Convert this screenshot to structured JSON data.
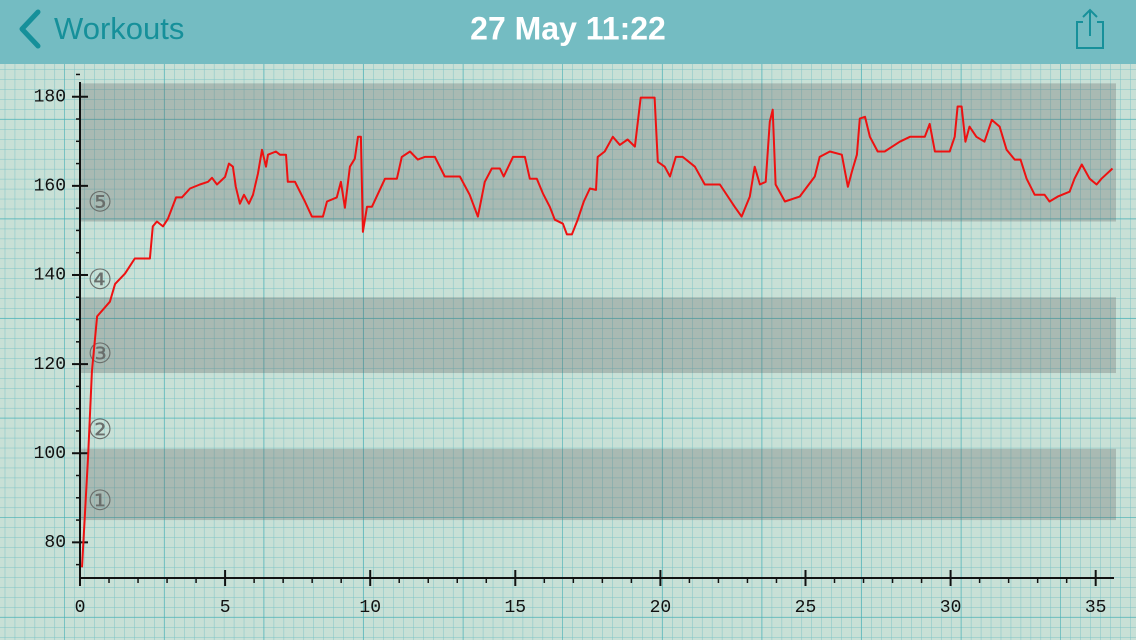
{
  "header": {
    "back": "Workouts",
    "title": "27 May 11:22"
  },
  "chart_data": {
    "type": "line",
    "x": [
      0.07,
      0.28,
      0.41,
      0.59,
      1.03,
      1.21,
      1.55,
      1.89,
      2.41,
      2.51,
      2.65,
      2.86,
      3.03,
      3.31,
      3.51,
      3.79,
      4.13,
      4.41,
      4.55,
      4.72,
      5.0,
      5.13,
      5.27,
      5.37,
      5.51,
      5.65,
      5.82,
      5.96,
      6.13,
      6.27,
      6.41,
      6.48,
      6.75,
      6.89,
      7.1,
      7.16,
      7.41,
      7.75,
      7.99,
      8.37,
      8.51,
      8.85,
      8.99,
      9.13,
      9.3,
      9.47,
      9.58,
      9.68,
      9.75,
      9.89,
      10.06,
      10.51,
      10.92,
      11.09,
      11.37,
      11.64,
      11.88,
      12.23,
      12.57,
      13.09,
      13.43,
      13.71,
      13.95,
      14.19,
      14.47,
      14.6,
      14.92,
      15.33,
      15.5,
      15.74,
      15.95,
      16.19,
      16.36,
      16.64,
      16.78,
      16.95,
      17.15,
      17.36,
      17.57,
      17.78,
      17.84,
      18.08,
      18.36,
      18.6,
      18.87,
      19.12,
      19.32,
      19.8,
      19.91,
      20.15,
      20.33,
      20.53,
      20.77,
      21.19,
      21.53,
      22.05,
      22.56,
      22.8,
      23.08,
      23.25,
      23.43,
      23.63,
      23.77,
      23.87,
      23.97,
      24.29,
      24.8,
      25.32,
      25.49,
      25.84,
      26.25,
      26.46,
      26.6,
      26.77,
      26.87,
      27.05,
      27.22,
      27.49,
      27.73,
      28.25,
      28.6,
      29.11,
      29.28,
      29.46,
      29.97,
      30.14,
      30.24,
      30.38,
      30.51,
      30.65,
      30.89,
      31.17,
      31.42,
      31.69,
      31.93,
      32.21,
      32.41,
      32.62,
      32.9,
      33.24,
      33.41,
      33.69,
      34.1,
      34.27,
      34.52,
      34.79,
      35.03,
      35.2,
      35.58
    ],
    "series": [
      {
        "color": "#ee1111",
        "values": [
          74.4,
          99.3,
          118.3,
          130.7,
          134,
          138,
          140.3,
          143.7,
          143.7,
          150.9,
          152,
          150.9,
          152.6,
          157.4,
          157.4,
          159.4,
          160.3,
          160.9,
          161.8,
          160.3,
          162,
          165,
          164.3,
          159.8,
          156,
          158,
          156,
          158,
          162.7,
          168.1,
          164.3,
          167,
          167.7,
          167,
          167,
          160.9,
          160.9,
          156.5,
          153.1,
          153.1,
          156.5,
          157.4,
          160.9,
          155.1,
          164.3,
          166.1,
          171,
          171,
          149.7,
          155.3,
          155.3,
          161.6,
          161.6,
          166.5,
          167.7,
          165.9,
          166.5,
          166.5,
          162.1,
          162.1,
          158,
          153.1,
          160.9,
          163.9,
          163.9,
          162.1,
          166.5,
          166.5,
          161.6,
          161.6,
          158.3,
          155.3,
          152.4,
          151.5,
          149.1,
          149.1,
          152.4,
          156.5,
          159.4,
          159.1,
          166.5,
          167.7,
          171,
          169.2,
          170.4,
          168.8,
          179.8,
          179.8,
          165.4,
          164.3,
          162.1,
          166.5,
          166.5,
          164.3,
          160.3,
          160.3,
          155.3,
          153.1,
          157.6,
          164.3,
          160.3,
          160.9,
          174.4,
          177.1,
          160.3,
          156.5,
          157.6,
          162.1,
          166.5,
          167.7,
          167,
          159.8,
          163.2,
          167,
          175.1,
          175.5,
          171,
          167.7,
          167.7,
          169.9,
          171,
          171,
          173.9,
          167.7,
          167.7,
          171,
          177.8,
          177.8,
          169.9,
          173.3,
          171,
          169.9,
          174.8,
          173.3,
          168.1,
          165.9,
          165.9,
          161.6,
          158,
          158,
          156.5,
          157.6,
          158.7,
          161.6,
          164.8,
          161.6,
          160.3,
          161.6,
          163.9
        ]
      }
    ],
    "xlim": [
      0,
      35.7
    ],
    "ylim": [
      72,
      186
    ],
    "xticks": [
      0,
      5,
      10,
      15,
      20,
      25,
      30,
      35
    ],
    "xminorticks": [
      1,
      2,
      3,
      4,
      6,
      7,
      8,
      9,
      11,
      12,
      13,
      14,
      16,
      17,
      18,
      19,
      21,
      22,
      23,
      24,
      26,
      27,
      28,
      29,
      31,
      32,
      33,
      34
    ],
    "yticks": [
      80,
      100,
      120,
      140,
      160,
      180
    ],
    "yminorticks": [
      75,
      85,
      90,
      95,
      105,
      110,
      115,
      125,
      130,
      135,
      145,
      150,
      155,
      165,
      170,
      175,
      185
    ],
    "bands": [
      [
        85,
        101
      ],
      [
        118,
        135
      ],
      [
        152,
        183
      ]
    ],
    "zones": [
      {
        "label": "①",
        "y": 89
      },
      {
        "label": "②",
        "y": 105
      },
      {
        "label": "③",
        "y": 122
      },
      {
        "label": "④",
        "y": 138.7
      },
      {
        "label": "⑤",
        "y": 156
      }
    ]
  }
}
